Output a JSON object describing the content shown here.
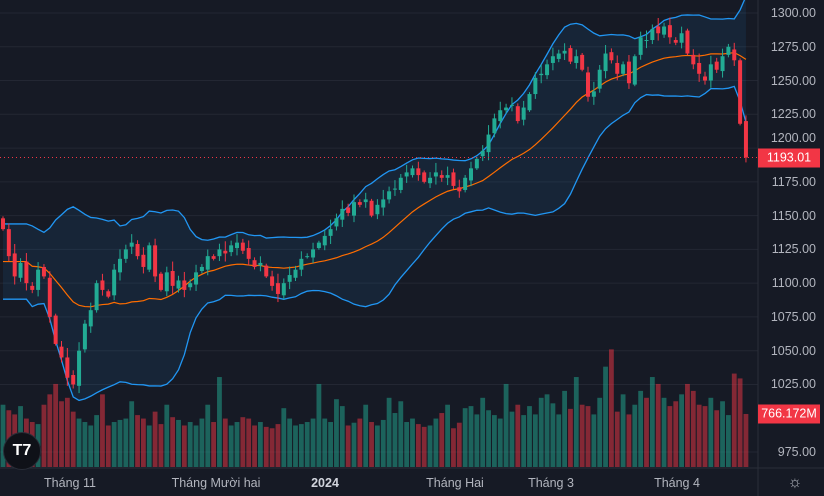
{
  "chart_data": {
    "type": "candlestick",
    "indicators": [
      "Bollinger Bands (20, 2)",
      "Volume"
    ],
    "price_axis": {
      "ticks": [
        "1300.00",
        "1275.00",
        "1250.00",
        "1225.00",
        "1200.00",
        "1175.00",
        "1150.00",
        "1125.00",
        "1100.00",
        "1075.00",
        "1050.00",
        "1025.00",
        "975.00"
      ],
      "range": [
        975,
        1300
      ]
    },
    "time_axis": {
      "labels": [
        "Tháng 11",
        "Tháng Mười hai",
        "2024",
        "Tháng Hai",
        "Tháng 3",
        "Tháng 4"
      ]
    },
    "last_price": "1193.01",
    "last_volume": "766.172M",
    "close": [
      1140,
      1120,
      1105,
      1115,
      1100,
      1095,
      1110,
      1105,
      1075,
      1055,
      1045,
      1030,
      1025,
      1050,
      1070,
      1080,
      1100,
      1095,
      1090,
      1110,
      1118,
      1125,
      1130,
      1120,
      1112,
      1128,
      1105,
      1095,
      1108,
      1098,
      1102,
      1095,
      1100,
      1108,
      1112,
      1120,
      1118,
      1125,
      1122,
      1128,
      1130,
      1124,
      1118,
      1112,
      1115,
      1105,
      1098,
      1092,
      1100,
      1106,
      1110,
      1118,
      1120,
      1125,
      1130,
      1135,
      1140,
      1148,
      1155,
      1152,
      1160,
      1158,
      1162,
      1150,
      1158,
      1162,
      1168,
      1170,
      1178,
      1182,
      1185,
      1180,
      1175,
      1178,
      1182,
      1178,
      1180,
      1172,
      1168,
      1178,
      1185,
      1192,
      1198,
      1210,
      1222,
      1228,
      1230,
      1232,
      1220,
      1230,
      1240,
      1252,
      1255,
      1262,
      1268,
      1270,
      1272,
      1264,
      1268,
      1258,
      1238,
      1242,
      1258,
      1270,
      1265,
      1255,
      1262,
      1248,
      1268,
      1282,
      1280,
      1288,
      1285,
      1290,
      1282,
      1278,
      1285,
      1270,
      1262,
      1255,
      1250,
      1262,
      1258,
      1268,
      1275,
      1265,
      1218,
      1193.01
    ],
    "volume_millions": [
      900,
      820,
      760,
      880,
      700,
      650,
      620,
      900,
      1050,
      1200,
      950,
      1000,
      800,
      700,
      650,
      600,
      750,
      1050,
      600,
      650,
      680,
      700,
      950,
      750,
      700,
      600,
      800,
      620,
      900,
      720,
      680,
      600,
      650,
      600,
      700,
      900,
      650,
      1300,
      700,
      600,
      650,
      720,
      700,
      600,
      650,
      580,
      560,
      620,
      850,
      700,
      600,
      620,
      650,
      700,
      1200,
      700,
      650,
      980,
      880,
      600,
      640,
      700,
      900,
      650,
      600,
      680,
      1000,
      780,
      950,
      650,
      700,
      620,
      580,
      600,
      700,
      780,
      900,
      560,
      640,
      850,
      880,
      760,
      1000,
      820,
      750,
      700,
      1200,
      800,
      900,
      750,
      880,
      760,
      1000,
      1050,
      920,
      760,
      1100,
      840,
      1300,
      900,
      880,
      760,
      1000,
      1450,
      1700,
      800,
      1050,
      760,
      900,
      1100,
      1000,
      1300,
      1200,
      1000,
      880,
      950,
      1050,
      1200,
      1100,
      900,
      880,
      1000,
      820,
      950,
      750,
      1350,
      1280,
      766.172
    ],
    "colors": {
      "up": "#22ab94",
      "down": "#f23645",
      "band": "#2196f3",
      "basis": "#ff6d00",
      "background": "#161a25"
    }
  },
  "logo_text": "TV",
  "settings_icon": "gear-icon"
}
